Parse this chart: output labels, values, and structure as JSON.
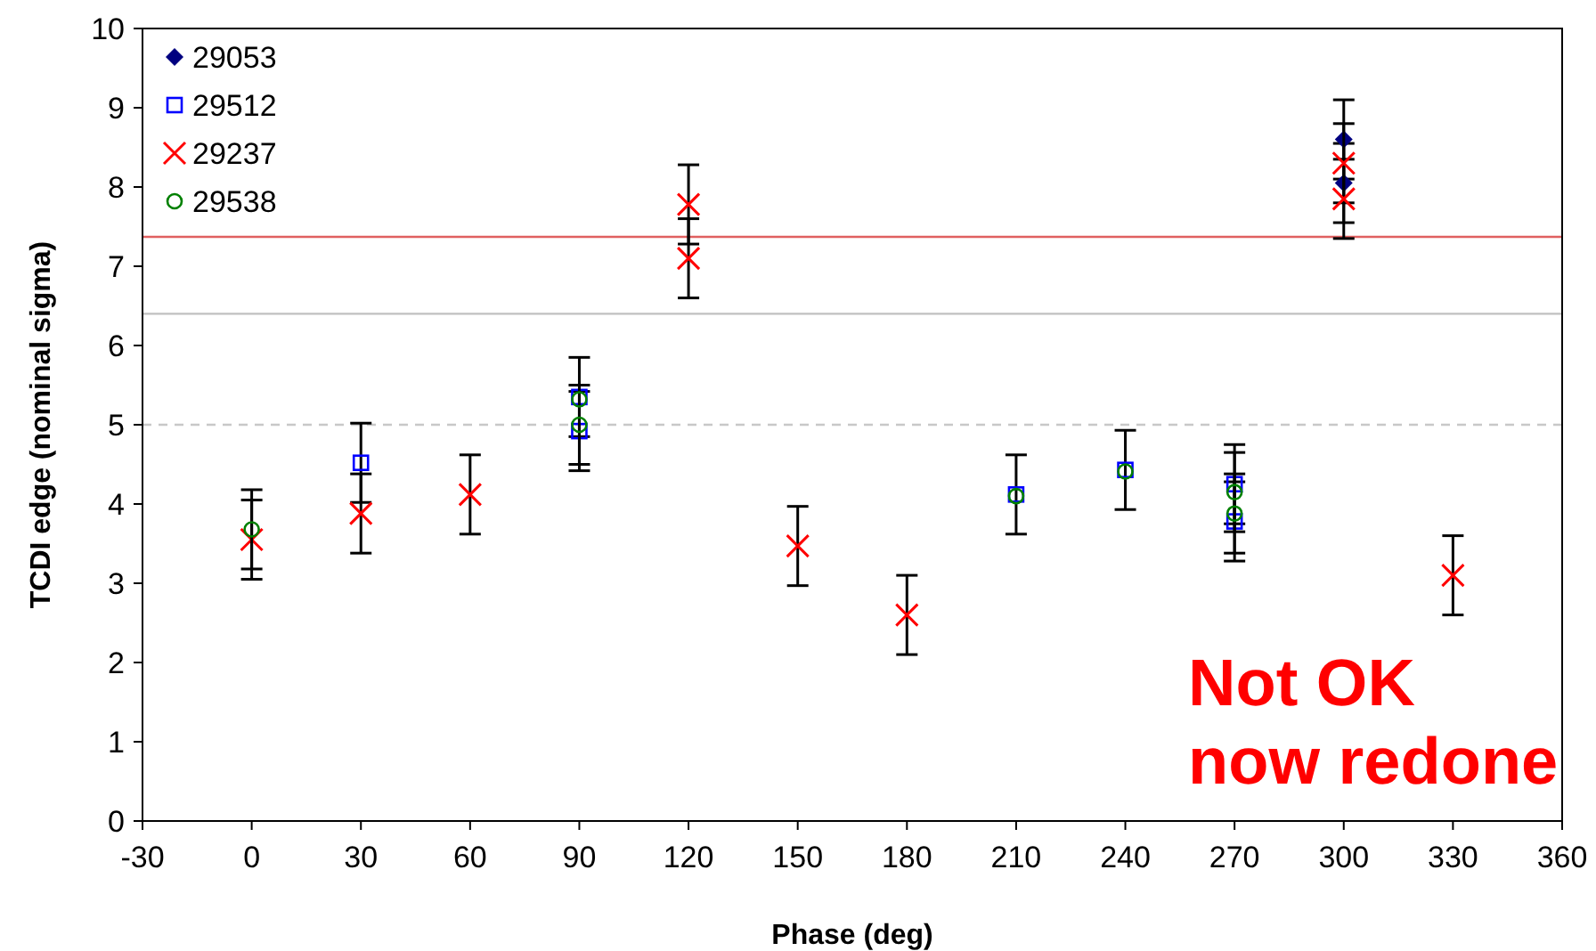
{
  "chart_data": {
    "type": "scatter",
    "xlabel": "Phase (deg)",
    "ylabel": "TCDI edge (nominal sigma)",
    "xlim": [
      -30,
      360
    ],
    "xticks": [
      -30,
      0,
      30,
      60,
      90,
      120,
      150,
      180,
      210,
      240,
      270,
      300,
      330,
      360
    ],
    "ylim": [
      0,
      10
    ],
    "yticks": [
      0,
      1,
      2,
      3,
      4,
      5,
      6,
      7,
      8,
      9,
      10
    ],
    "legend": "top left",
    "series": [
      {
        "name": "29053",
        "color": "#000080",
        "marker": "diamond",
        "x": [
          300,
          300
        ],
        "values": [
          8.6,
          8.05
        ],
        "errors": [
          0.5,
          0.5
        ]
      },
      {
        "name": "29512",
        "color": "#0000ff",
        "marker": "square",
        "x": [
          30,
          90,
          90,
          210,
          240,
          270,
          270
        ],
        "values": [
          4.52,
          5.35,
          4.92,
          4.12,
          4.43,
          4.25,
          3.78
        ],
        "errors": [
          0.5,
          0.5,
          0.5,
          0.5,
          0.5,
          0.5,
          0.5
        ]
      },
      {
        "name": "29237",
        "color": "#ff0000",
        "marker": "cross",
        "x": [
          0,
          30,
          60,
          120,
          120,
          150,
          180,
          300,
          300,
          330
        ],
        "values": [
          3.55,
          3.88,
          4.12,
          7.78,
          7.1,
          3.47,
          2.6,
          8.3,
          7.85,
          3.1
        ],
        "errors": [
          0.5,
          0.5,
          0.5,
          0.5,
          0.5,
          0.5,
          0.5,
          0.5,
          0.5,
          0.5
        ]
      },
      {
        "name": "29538",
        "color": "#008000",
        "marker": "circle",
        "x": [
          0,
          90,
          90,
          210,
          240,
          270,
          270
        ],
        "values": [
          3.68,
          5.32,
          5.0,
          4.1,
          4.41,
          4.15,
          3.88
        ],
        "errors": [
          0.5,
          null,
          0.5,
          null,
          null,
          0.5,
          0.5
        ]
      }
    ],
    "ref_lines": [
      {
        "axis": "y",
        "value": 7.37,
        "color": "#e06060",
        "line_style": "solid"
      },
      {
        "axis": "y",
        "value": 6.4,
        "color": "#c0c0c0",
        "line_style": "solid"
      },
      {
        "axis": "y",
        "value": 5,
        "color": "#c8c8c8",
        "line_style": "dashed"
      }
    ],
    "annotations": [
      "Not OK\nnow redone"
    ]
  }
}
